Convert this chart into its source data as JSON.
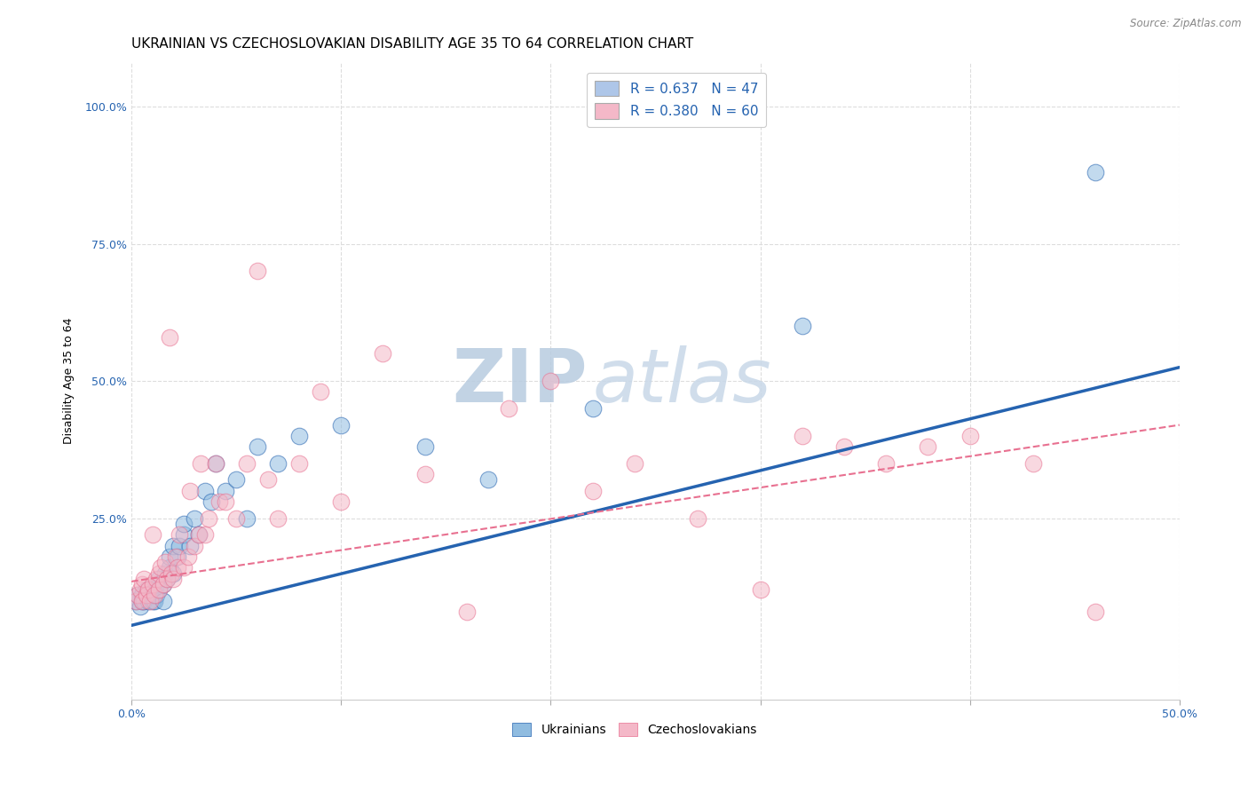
{
  "title": "UKRAINIAN VS CZECHOSLOVAKIAN DISABILITY AGE 35 TO 64 CORRELATION CHART",
  "source": "Source: ZipAtlas.com",
  "ylabel": "Disability Age 35 to 64",
  "ytick_labels": [
    "100.0%",
    "75.0%",
    "50.0%",
    "25.0%"
  ],
  "ytick_values": [
    1.0,
    0.75,
    0.5,
    0.25
  ],
  "xmin": 0.0,
  "xmax": 0.5,
  "ymin": -0.08,
  "ymax": 1.08,
  "legend_entry1": "R = 0.637   N = 47",
  "legend_entry2": "R = 0.380   N = 60",
  "legend_color1": "#aec6e8",
  "legend_color2": "#f4b8c8",
  "watermark_top": "ZIP",
  "watermark_bottom": "atlas",
  "watermark_color": "#ccd8e8",
  "blue_color": "#2563b0",
  "pink_color": "#e87090",
  "scatter_blue_color": "#90bce0",
  "scatter_pink_color": "#f4b8c8",
  "ukrainians_x": [
    0.002,
    0.003,
    0.004,
    0.005,
    0.005,
    0.006,
    0.007,
    0.008,
    0.008,
    0.009,
    0.01,
    0.01,
    0.011,
    0.012,
    0.012,
    0.013,
    0.013,
    0.015,
    0.015,
    0.016,
    0.017,
    0.018,
    0.018,
    0.02,
    0.02,
    0.022,
    0.023,
    0.025,
    0.025,
    0.028,
    0.03,
    0.032,
    0.035,
    0.038,
    0.04,
    0.045,
    0.05,
    0.055,
    0.06,
    0.07,
    0.08,
    0.1,
    0.14,
    0.17,
    0.22,
    0.32,
    0.46
  ],
  "ukrainians_y": [
    0.1,
    0.11,
    0.09,
    0.1,
    0.11,
    0.1,
    0.12,
    0.1,
    0.12,
    0.11,
    0.1,
    0.12,
    0.1,
    0.11,
    0.13,
    0.12,
    0.14,
    0.1,
    0.13,
    0.15,
    0.14,
    0.16,
    0.18,
    0.15,
    0.2,
    0.18,
    0.2,
    0.22,
    0.24,
    0.2,
    0.25,
    0.22,
    0.3,
    0.28,
    0.35,
    0.3,
    0.32,
    0.25,
    0.38,
    0.35,
    0.4,
    0.42,
    0.38,
    0.32,
    0.45,
    0.6,
    0.88
  ],
  "czechoslovakians_x": [
    0.002,
    0.003,
    0.004,
    0.005,
    0.005,
    0.006,
    0.007,
    0.008,
    0.009,
    0.01,
    0.01,
    0.011,
    0.012,
    0.013,
    0.013,
    0.014,
    0.015,
    0.016,
    0.017,
    0.018,
    0.019,
    0.02,
    0.021,
    0.022,
    0.023,
    0.025,
    0.027,
    0.028,
    0.03,
    0.032,
    0.033,
    0.035,
    0.037,
    0.04,
    0.042,
    0.045,
    0.05,
    0.055,
    0.06,
    0.065,
    0.07,
    0.08,
    0.09,
    0.1,
    0.12,
    0.14,
    0.16,
    0.18,
    0.2,
    0.22,
    0.24,
    0.27,
    0.3,
    0.32,
    0.34,
    0.36,
    0.38,
    0.4,
    0.43,
    0.46
  ],
  "czechoslovakians_y": [
    0.1,
    0.11,
    0.12,
    0.1,
    0.13,
    0.14,
    0.11,
    0.12,
    0.1,
    0.13,
    0.22,
    0.11,
    0.14,
    0.12,
    0.15,
    0.16,
    0.13,
    0.17,
    0.14,
    0.58,
    0.15,
    0.14,
    0.18,
    0.16,
    0.22,
    0.16,
    0.18,
    0.3,
    0.2,
    0.22,
    0.35,
    0.22,
    0.25,
    0.35,
    0.28,
    0.28,
    0.25,
    0.35,
    0.7,
    0.32,
    0.25,
    0.35,
    0.48,
    0.28,
    0.55,
    0.33,
    0.08,
    0.45,
    0.5,
    0.3,
    0.35,
    0.25,
    0.12,
    0.4,
    0.38,
    0.35,
    0.38,
    0.4,
    0.35,
    0.08
  ],
  "blue_line_x": [
    0.0,
    0.5
  ],
  "blue_line_y": [
    0.055,
    0.525
  ],
  "pink_line_x": [
    0.0,
    0.5
  ],
  "pink_line_y": [
    0.135,
    0.42
  ],
  "grid_color": "#dddddd",
  "title_fontsize": 11,
  "axis_label_fontsize": 9,
  "tick_fontsize": 9,
  "legend_fontsize": 11
}
